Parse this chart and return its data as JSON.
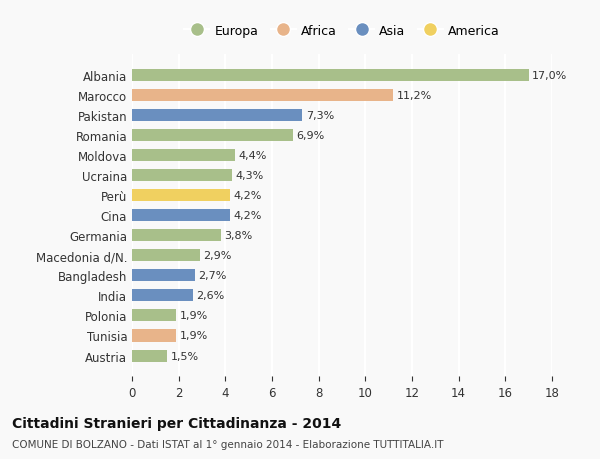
{
  "categories": [
    "Albania",
    "Marocco",
    "Pakistan",
    "Romania",
    "Moldova",
    "Ucraina",
    "Perù",
    "Cina",
    "Germania",
    "Macedonia d/N.",
    "Bangladesh",
    "India",
    "Polonia",
    "Tunisia",
    "Austria"
  ],
  "values": [
    17.0,
    11.2,
    7.3,
    6.9,
    4.4,
    4.3,
    4.2,
    4.2,
    3.8,
    2.9,
    2.7,
    2.6,
    1.9,
    1.9,
    1.5
  ],
  "labels": [
    "17,0%",
    "11,2%",
    "7,3%",
    "6,9%",
    "4,4%",
    "4,3%",
    "4,2%",
    "4,2%",
    "3,8%",
    "2,9%",
    "2,7%",
    "2,6%",
    "1,9%",
    "1,9%",
    "1,5%"
  ],
  "continents": [
    "Europa",
    "Africa",
    "Asia",
    "Europa",
    "Europa",
    "Europa",
    "America",
    "Asia",
    "Europa",
    "Europa",
    "Asia",
    "Asia",
    "Europa",
    "Africa",
    "Europa"
  ],
  "colors": {
    "Europa": "#a8bf8a",
    "Africa": "#e8b48a",
    "Asia": "#6a8fbf",
    "America": "#f0d060"
  },
  "legend_order": [
    "Europa",
    "Africa",
    "Asia",
    "America"
  ],
  "title": "Cittadini Stranieri per Cittadinanza - 2014",
  "subtitle": "COMUNE DI BOLZANO - Dati ISTAT al 1° gennaio 2014 - Elaborazione TUTTITALIA.IT",
  "xlim": [
    0,
    18
  ],
  "xticks": [
    0,
    2,
    4,
    6,
    8,
    10,
    12,
    14,
    16,
    18
  ],
  "background_color": "#f9f9f9",
  "grid_color": "#ffffff",
  "bar_height": 0.6
}
